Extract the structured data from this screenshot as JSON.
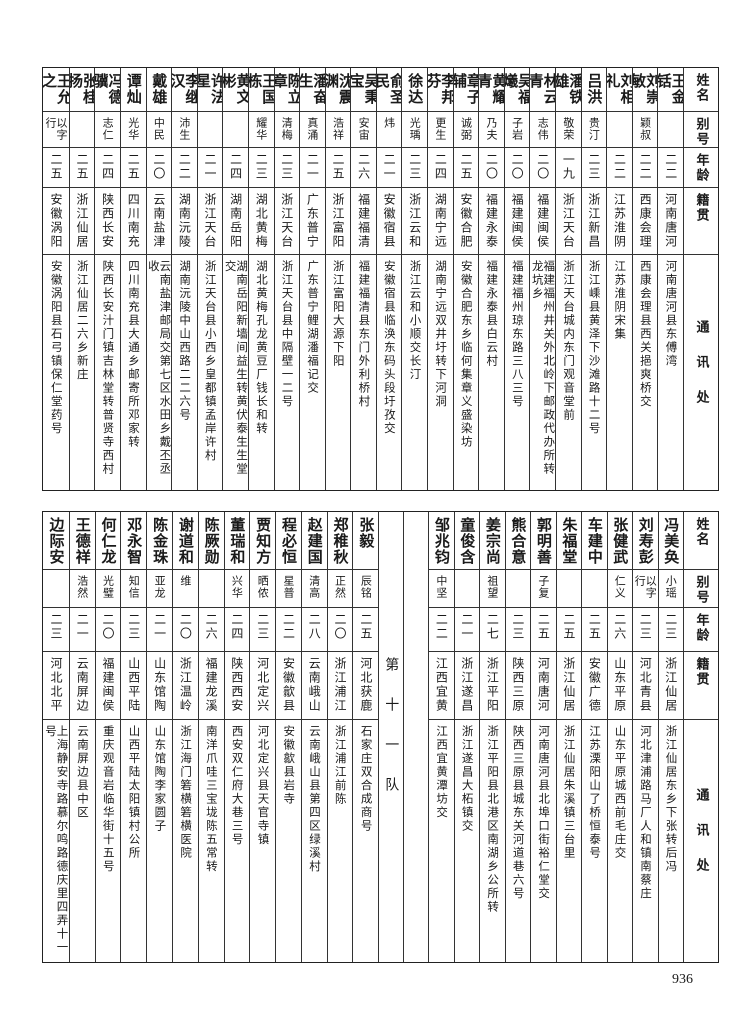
{
  "headers": {
    "name": "姓名",
    "alias": "别号",
    "age": "年龄",
    "place": "籍贯",
    "address": "通讯处"
  },
  "top": {
    "rows": [
      {
        "name": "王金铦",
        "alias": "",
        "age": "二二",
        "place": "河南唐河",
        "address": "河南唐河县东傅湾"
      },
      {
        "name": "刘崇敏",
        "alias": "颖叔",
        "age": "二二",
        "place": "西康会理",
        "address": "西康会理县西关挹爽桥交"
      },
      {
        "name": "刘相礼",
        "alias": "",
        "age": "二二",
        "place": "江苏淮阴",
        "address": "江苏淮阴宋集"
      },
      {
        "name": "吕洪",
        "alias": "贵汀",
        "age": "二三",
        "place": "浙江新昌",
        "address": "浙江嵊县黄泽下沙滩路十二号"
      },
      {
        "name": "潘铁雄",
        "alias": "敬荣",
        "age": "一九",
        "place": "浙江天台",
        "address": "浙江天台城内东门观音堂前"
      },
      {
        "name": "林云青",
        "alias": "志伟",
        "age": "二〇",
        "place": "福建闽侯",
        "address": "福建福州井关外北岭下邮政代办所转龙坑乡"
      },
      {
        "name": "吴福爔",
        "alias": "子岩",
        "age": "二〇",
        "place": "福建闽侯",
        "address": "福建福州琼东路三八三号"
      },
      {
        "name": "黄耀青",
        "alias": "乃夫",
        "age": "二〇",
        "place": "福建永泰",
        "address": "福建永泰县白云村"
      },
      {
        "name": "章子辅",
        "alias": "诚弼",
        "age": "二五",
        "place": "安徽合肥",
        "address": "安徽合肥东乡临何集章义盛染坊"
      },
      {
        "name": "李邦芬",
        "alias": "更生",
        "age": "二四",
        "place": "湖南宁远",
        "address": "湖南宁远双井圩转下河洞"
      },
      {
        "name": "徐达",
        "alias": "光瑀",
        "age": "二三",
        "place": "浙江云和",
        "address": "浙江云和小顺交长汀"
      },
      {
        "name": "俞圣民",
        "alias": "炜",
        "age": "二一",
        "place": "安徽宿县",
        "address": "安徽宿县临涣东码头段圩孜交"
      },
      {
        "name": "吴秉宝",
        "alias": "安宙",
        "age": "二六",
        "place": "福建福清",
        "address": "福建福清县东门外利桥村"
      },
      {
        "name": "沈震渊",
        "alias": "浩祥",
        "age": "二五",
        "place": "浙江富阳",
        "address": "浙江富阳大源下阳"
      },
      {
        "name": "潘奋生",
        "alias": "真涌",
        "age": "二一",
        "place": "广东普宁",
        "address": "广东普宁鲤湖潘福记交"
      },
      {
        "name": "陈立章",
        "alias": "清梅",
        "age": "二三",
        "place": "浙江天台",
        "address": "浙江天台县中隔壁一二号"
      },
      {
        "name": "王国栋",
        "alias": "耀华",
        "age": "二三",
        "place": "湖北黄梅",
        "address": "湖北黄梅孔龙黄豆厂钱长和转"
      },
      {
        "name": "黄文彬",
        "alias": "",
        "age": "二四",
        "place": "湖南岳阳",
        "address": "湖南岳阳新墙间益生转黄伏泰生生堂交"
      },
      {
        "name": "许法星",
        "alias": "",
        "age": "二一",
        "place": "浙江天台",
        "address": "浙江天台县小西乡皇都镇孟岸许村"
      },
      {
        "name": "李继汉",
        "alias": "沛生",
        "age": "二二",
        "place": "湖南沅陵",
        "address": "湖南沅陵中山西路二二六号"
      },
      {
        "name": "戴雄",
        "alias": "中民",
        "age": "二〇",
        "place": "云南盐津",
        "address": "云南盐津邮局交第七区水田乡戴丕丞收"
      },
      {
        "name": "谭灿",
        "alias": "光华",
        "age": "二五",
        "place": "四川南充",
        "address": "四川南充县大通乡邮寄所邓家转"
      },
      {
        "name": "冯德骥",
        "alias": "志仁",
        "age": "二四",
        "place": "陕西长安",
        "address": "陕西长安汁门镇吉林堂转普贤寺西村"
      },
      {
        "name": "张桂扬",
        "alias": "",
        "age": "二五",
        "place": "浙江仙居",
        "address": "浙江仙居二六乡新庄"
      },
      {
        "name": "王允之",
        "alias": "以字行",
        "age": "二五",
        "place": "安徽涡阳",
        "address": "安徽涡阳县石弓镇保仁堂药号"
      }
    ]
  },
  "bottom": {
    "rows_right": [
      {
        "name": "冯美奂",
        "alias": "小瑶",
        "age": "二三",
        "place": "浙江仙居",
        "address": "浙江仙居东乡下张转后冯"
      },
      {
        "name": "刘寿彭",
        "alias": "以字行",
        "age": "二三",
        "place": "河北青县",
        "address": "河北津浦路马厂人和镇南蔡庄"
      },
      {
        "name": "张健武",
        "alias": "仁义",
        "age": "二六",
        "place": "山东平原",
        "address": "山东平原城西前毛庄交"
      },
      {
        "name": "车建中",
        "alias": "",
        "age": "二五",
        "place": "安徽广德",
        "address": "江苏溧阳山了桥恒泰号"
      },
      {
        "name": "朱福堂",
        "alias": "",
        "age": "二五",
        "place": "浙江仙居",
        "address": "浙江仙居朱溪镇三台里"
      },
      {
        "name": "郭明善",
        "alias": "子复",
        "age": "二五",
        "place": "河南唐河",
        "address": "河南唐河县北埠口街裕仁堂交"
      },
      {
        "name": "熊合意",
        "alias": "",
        "age": "二三",
        "place": "陕西三原",
        "address": "陕西三原县城东关河道巷六号"
      },
      {
        "name": "姜宗尚",
        "alias": "祖望",
        "age": "二七",
        "place": "浙江平阳",
        "address": "浙江平阳县北港区南湖乡公所转"
      },
      {
        "name": "童俊含",
        "alias": "",
        "age": "二一",
        "place": "浙江遂昌",
        "address": "浙江遂昌大柘镇交"
      },
      {
        "name": "邹兆钧",
        "alias": "中坚",
        "age": "二二",
        "place": "江西宜黄",
        "address": "江西宜黄潭坊交"
      }
    ],
    "team_label": "第十一队",
    "rows_left": [
      {
        "name": "张毅",
        "alias": "辰铭",
        "age": "二五",
        "place": "河北获鹿",
        "address": "石家庄双合成商号"
      },
      {
        "name": "郑稚秋",
        "alias": "正然",
        "age": "二〇",
        "place": "浙江浦江",
        "address": "浙江浦江前陈"
      },
      {
        "name": "赵建国",
        "alias": "清高",
        "age": "二八",
        "place": "云南峨山",
        "address": "云南峨山县第四区绿溪村"
      },
      {
        "name": "程必恒",
        "alias": "星普",
        "age": "二二",
        "place": "安徽歙县",
        "address": "安徽歙县岩寺"
      },
      {
        "name": "贾知方",
        "alias": "晒侬",
        "age": "二三",
        "place": "河北定兴",
        "address": "河北定兴县天官寺镇"
      },
      {
        "name": "董瑞和",
        "alias": "兴华",
        "age": "二四",
        "place": "陕西西安",
        "address": "西安双仁府大巷三号"
      },
      {
        "name": "陈厥勋",
        "alias": "",
        "age": "二六",
        "place": "福建龙溪",
        "address": "南洋爪哇三宝垅陈五常转"
      },
      {
        "name": "谢道和",
        "alias": "维",
        "age": "二〇",
        "place": "浙江温岭",
        "address": "浙江海门箬横箬横医院"
      },
      {
        "name": "陈金珠",
        "alias": "亚龙",
        "age": "二一",
        "place": "山东馆陶",
        "address": "山东馆陶李家圆子"
      },
      {
        "name": "邓永智",
        "alias": "知信",
        "age": "二三",
        "place": "山西平陆",
        "address": "山西平陆太阳镇村公所"
      },
      {
        "name": "何仁龙",
        "alias": "光璧",
        "age": "二〇",
        "place": "福建闽侯",
        "address": "重庆观音岩临华街十五号"
      },
      {
        "name": "王德祥",
        "alias": "浩然",
        "age": "二一",
        "place": "云南屏边",
        "address": "云南屏边县中区"
      },
      {
        "name": "边际安",
        "alias": "",
        "age": "二三",
        "place": "河北北平",
        "address": "上海静安寺路慕尔鸣路德庆里四弄十一号"
      }
    ]
  },
  "page_number": "936"
}
